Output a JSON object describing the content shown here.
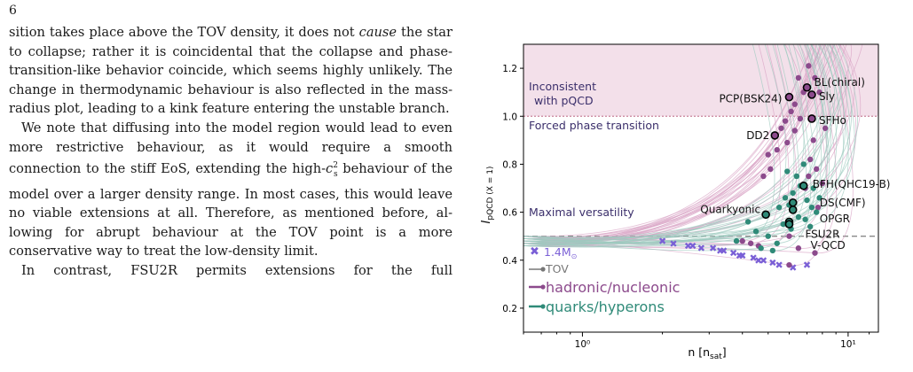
{
  "page": {
    "number": "6"
  },
  "paragraphs": [
    {
      "id": "p1",
      "text": "sition takes place above the TOV density, it does not cause the star to collapse; rather it is coincidental that the collapse and phase-transition-like behavior coincide, which seems highly unlikely. The change in thermodynamic behaviour is also reflected in the mass-radius plot, leading to a kink feature entering the unstable branch."
    },
    {
      "id": "p2",
      "text": "We note that diffusing into the model region would lead to even more restrictive behaviour, as it would require a smooth connection to the stiff EoS, extending the high-c²ₛ behaviour of the model over a larger density range. In most cases, this would leave no viable extensions at all. Therefore, as mentioned before, allowing for abrupt behaviour at the TOV point is a more conservative way to treat the low-density limit."
    },
    {
      "id": "p3",
      "text": "In contrast, FSU2R permits extensions for the full"
    }
  ],
  "figure": {
    "colors": {
      "region": "#f3e0ea",
      "hadronic": "#8c4a8c",
      "quarks": "#2f8a78",
      "tov_marker": "#7a5fd6",
      "tov_line": "#777777",
      "pqcd_line": "#c9829b",
      "text_dark": "#3b2f6b"
    },
    "region_labels": {
      "inconsistent_1": "Inconsistent",
      "inconsistent_2": "with pQCD",
      "forced": "Forced phase transition",
      "versatility": "Maximal versatility"
    },
    "legend": {
      "mass": "1.4M",
      "mass_sub": "⊙",
      "tov": "TOV",
      "hadronic": "hadronic/nucleonic",
      "quarks": "quarks/hyperons"
    },
    "eos_labels": [
      {
        "name": "BL(chiral)",
        "family": "hadronic",
        "n": 7.0,
        "I": 1.12
      },
      {
        "name": "Sly",
        "family": "hadronic",
        "n": 7.3,
        "I": 1.09
      },
      {
        "name": "PCP(BSK24)",
        "family": "hadronic",
        "n": 6.0,
        "I": 1.08
      },
      {
        "name": "SFHo",
        "family": "hadronic",
        "n": 7.3,
        "I": 0.99
      },
      {
        "name": "DD2",
        "family": "hadronic",
        "n": 5.3,
        "I": 0.92
      },
      {
        "name": "BFH(QHC19-B)",
        "family": "quarks",
        "n": 6.8,
        "I": 0.71
      },
      {
        "name": "Quarkyonic",
        "family": "quarks",
        "n": 4.9,
        "I": 0.59
      },
      {
        "name": "DS(CMF)",
        "family": "quarks",
        "n": 6.2,
        "I": 0.64
      },
      {
        "name": "OPGR",
        "family": "quarks",
        "n": 6.2,
        "I": 0.61
      },
      {
        "name": "FSU2R",
        "family": "quarks",
        "n": 6.0,
        "I": 0.56
      },
      {
        "name": "V-QCD",
        "family": "quarks",
        "n": 6.0,
        "I": 0.55
      }
    ]
  },
  "chart_data": {
    "type": "scatter",
    "xlabel": "n [n_sat]",
    "ylabel": "I_pQCD (X = 1)",
    "x_scale": "log",
    "xlim": [
      0.6,
      13
    ],
    "ylim": [
      0.1,
      1.3
    ],
    "x_ticks": [
      {
        "value": 1,
        "label": "10⁰"
      },
      {
        "value": 10,
        "label": "10¹"
      }
    ],
    "y_ticks": [
      0.2,
      0.4,
      0.6,
      0.8,
      1.0,
      1.2
    ],
    "reference_lines": [
      {
        "name": "pQCD limit",
        "y": 1.0
      },
      {
        "name": "maximal versatility",
        "y": 0.5
      }
    ],
    "series": [
      {
        "name": "1.4M⊙",
        "points": [
          [
            2.2,
            0.47
          ],
          [
            2.5,
            0.46
          ],
          [
            2.8,
            0.45
          ],
          [
            3.1,
            0.45
          ],
          [
            3.4,
            0.44
          ],
          [
            3.7,
            0.43
          ],
          [
            4.0,
            0.42
          ],
          [
            4.4,
            0.41
          ],
          [
            4.8,
            0.4
          ],
          [
            5.2,
            0.39
          ],
          [
            2.0,
            0.48
          ],
          [
            2.6,
            0.46
          ],
          [
            3.3,
            0.44
          ],
          [
            3.9,
            0.42
          ],
          [
            4.6,
            0.4
          ],
          [
            5.5,
            0.38
          ],
          [
            6.2,
            0.37
          ],
          [
            7.0,
            0.38
          ]
        ]
      },
      {
        "name": "hadronic/nucleonic",
        "points": [
          [
            4.6,
            0.46
          ],
          [
            4.8,
            0.75
          ],
          [
            5.0,
            0.84
          ],
          [
            5.1,
            0.78
          ],
          [
            5.3,
            0.92
          ],
          [
            5.4,
            0.86
          ],
          [
            5.6,
            0.95
          ],
          [
            5.8,
            0.98
          ],
          [
            5.9,
            0.89
          ],
          [
            6.0,
            1.08
          ],
          [
            6.1,
            1.02
          ],
          [
            6.3,
            1.05
          ],
          [
            6.3,
            0.94
          ],
          [
            6.5,
            1.16
          ],
          [
            6.6,
            0.99
          ],
          [
            6.8,
            1.1
          ],
          [
            6.9,
            0.7
          ],
          [
            7.0,
            1.12
          ],
          [
            7.1,
            0.75
          ],
          [
            7.1,
            1.21
          ],
          [
            7.2,
            0.82
          ],
          [
            7.3,
            1.09
          ],
          [
            7.3,
            0.99
          ],
          [
            7.4,
            0.9
          ],
          [
            7.5,
            1.16
          ],
          [
            7.6,
            0.78
          ],
          [
            7.7,
            0.62
          ],
          [
            7.8,
            1.1
          ],
          [
            8.0,
            0.72
          ],
          [
            8.2,
            0.95
          ],
          [
            4.0,
            0.48
          ],
          [
            4.3,
            0.47
          ],
          [
            6.0,
            0.5
          ],
          [
            6.5,
            0.45
          ],
          [
            7.5,
            0.43
          ],
          [
            6.0,
            0.38
          ]
        ]
      },
      {
        "name": "quarks/hyperons",
        "points": [
          [
            4.2,
            0.56
          ],
          [
            4.5,
            0.52
          ],
          [
            4.9,
            0.59
          ],
          [
            5.0,
            0.5
          ],
          [
            5.2,
            0.44
          ],
          [
            5.5,
            0.62
          ],
          [
            5.7,
            0.55
          ],
          [
            5.8,
            0.66
          ],
          [
            5.9,
            0.77
          ],
          [
            6.0,
            0.56
          ],
          [
            6.0,
            0.63
          ],
          [
            6.2,
            0.61
          ],
          [
            6.2,
            0.68
          ],
          [
            6.4,
            0.75
          ],
          [
            6.5,
            0.58
          ],
          [
            6.6,
            0.71
          ],
          [
            6.8,
            0.8
          ],
          [
            6.9,
            0.57
          ],
          [
            7.0,
            0.65
          ],
          [
            7.2,
            0.54
          ],
          [
            7.3,
            0.62
          ],
          [
            7.4,
            0.7
          ],
          [
            7.6,
            0.6
          ],
          [
            7.8,
            0.66
          ],
          [
            6.1,
            0.53
          ],
          [
            5.4,
            0.47
          ],
          [
            4.7,
            0.45
          ],
          [
            3.8,
            0.48
          ]
        ]
      }
    ]
  }
}
